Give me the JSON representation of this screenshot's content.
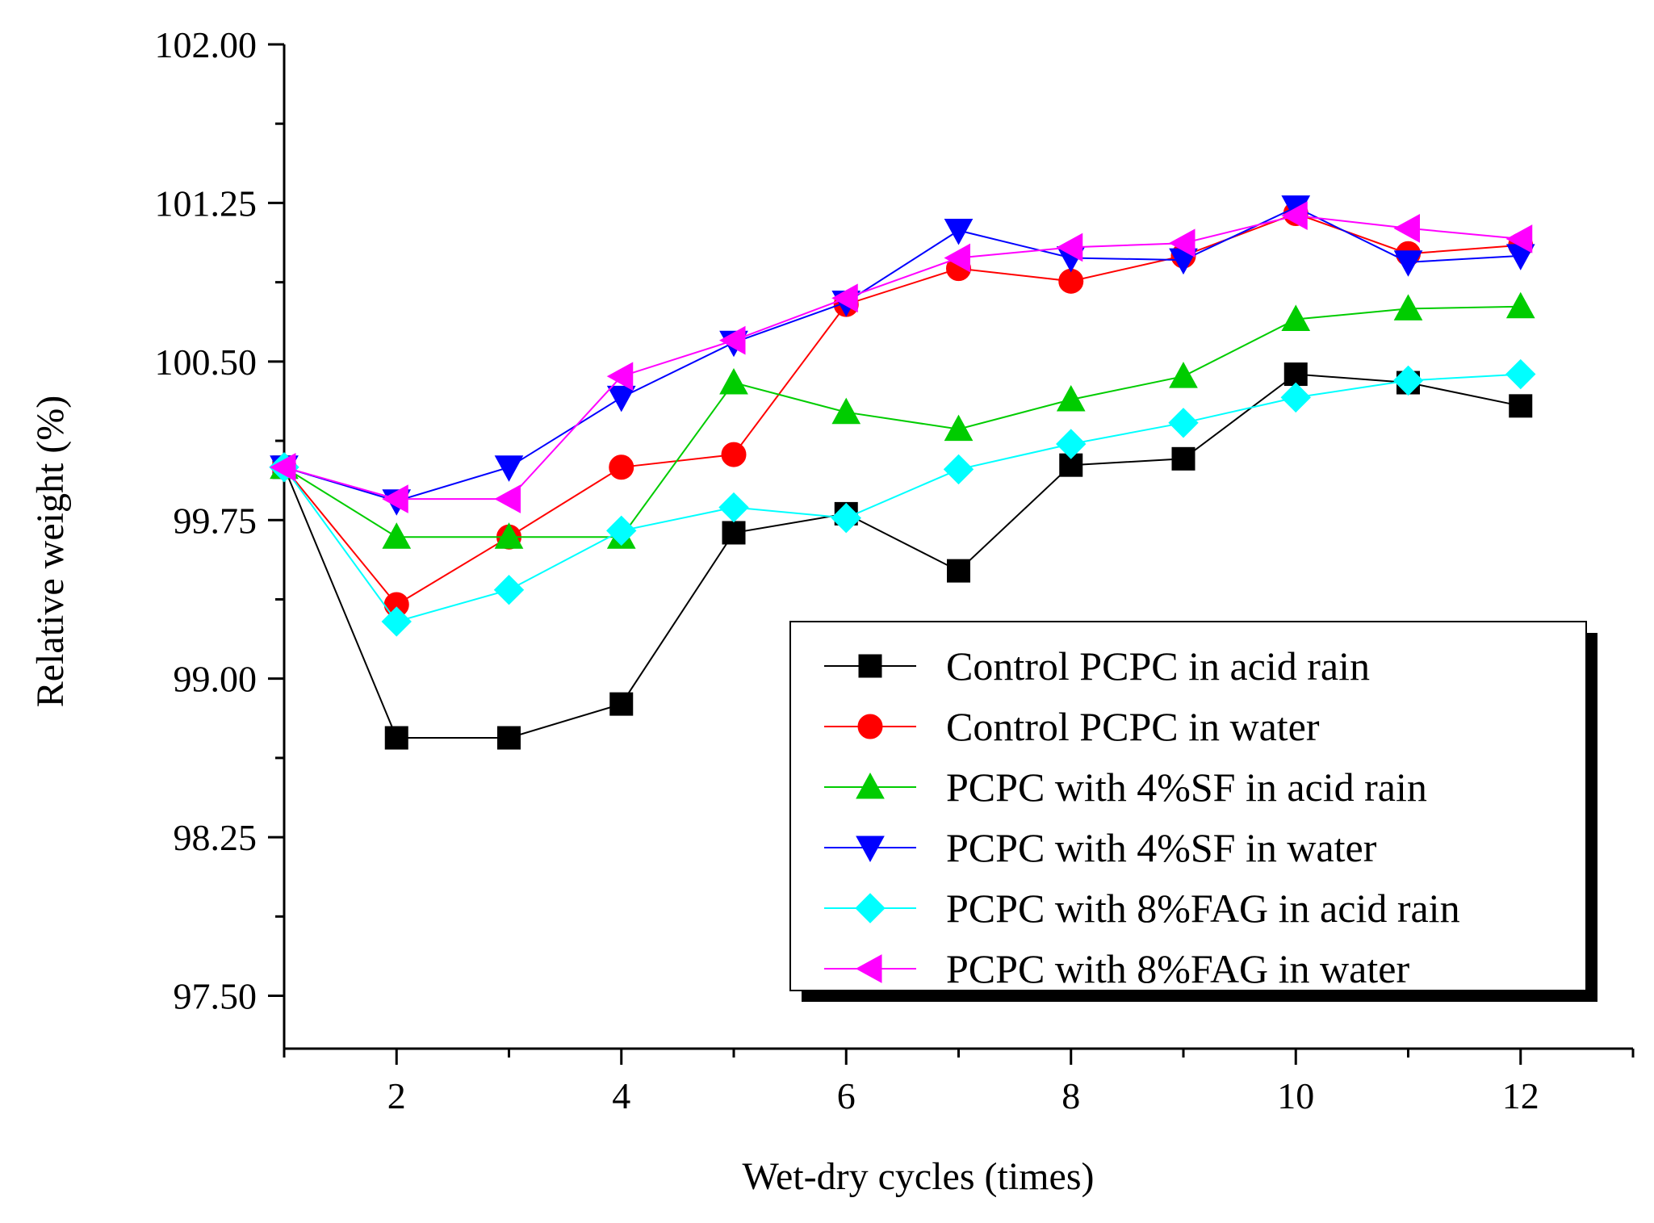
{
  "chart_data": {
    "type": "line",
    "title": "",
    "xlabel": "Wet-dry cycles (times)",
    "ylabel": "Relative weight (%)",
    "xlim": [
      1,
      13
    ],
    "ylim": [
      97.25,
      102.0
    ],
    "xticks": [
      2,
      4,
      6,
      8,
      10,
      12
    ],
    "xtick_labels": [
      "2",
      "4",
      "6",
      "8",
      "10",
      "12"
    ],
    "yticks": [
      97.5,
      98.25,
      99.0,
      99.75,
      100.5,
      101.25,
      102.0
    ],
    "ytick_labels": [
      "97.50",
      "98.25",
      "99.00",
      "99.75",
      "100.50",
      "101.25",
      "102.00"
    ],
    "legend_position": "lower-right",
    "x": [
      1,
      2,
      3,
      4,
      5,
      6,
      7,
      8,
      9,
      10,
      11,
      12
    ],
    "series": [
      {
        "name": "Control PCPC in acid rain",
        "color": "#000000",
        "marker": "square",
        "values": [
          100.0,
          98.72,
          98.72,
          98.88,
          99.69,
          99.78,
          99.51,
          100.01,
          100.04,
          100.44,
          100.4,
          100.29
        ]
      },
      {
        "name": "Control PCPC in water",
        "color": "#ff0000",
        "marker": "circle",
        "values": [
          100.0,
          99.35,
          99.67,
          100.0,
          100.06,
          100.77,
          100.94,
          100.88,
          101.0,
          101.2,
          101.01,
          101.05
        ]
      },
      {
        "name": "PCPC with 4%SF in acid rain",
        "color": "#00cc00",
        "marker": "triangle-up",
        "values": [
          100.0,
          99.67,
          99.67,
          99.67,
          100.4,
          100.26,
          100.18,
          100.32,
          100.43,
          100.7,
          100.75,
          100.76
        ]
      },
      {
        "name": "PCPC with 4%SF in water",
        "color": "#0000ff",
        "marker": "triangle-down",
        "values": [
          100.0,
          99.84,
          100.0,
          100.33,
          100.59,
          100.78,
          101.12,
          100.99,
          100.98,
          101.23,
          100.97,
          101.0
        ]
      },
      {
        "name": "PCPC with 8%FAG in acid rain",
        "color": "#00ffff",
        "marker": "diamond",
        "values": [
          100.0,
          99.27,
          99.42,
          99.7,
          99.81,
          99.76,
          99.99,
          100.11,
          100.21,
          100.33,
          100.41,
          100.44
        ]
      },
      {
        "name": "PCPC with 8%FAG in water",
        "color": "#ff00ff",
        "marker": "triangle-left",
        "values": [
          100.0,
          99.85,
          99.85,
          100.43,
          100.6,
          100.8,
          100.99,
          101.04,
          101.06,
          101.19,
          101.13,
          101.08
        ]
      }
    ]
  }
}
